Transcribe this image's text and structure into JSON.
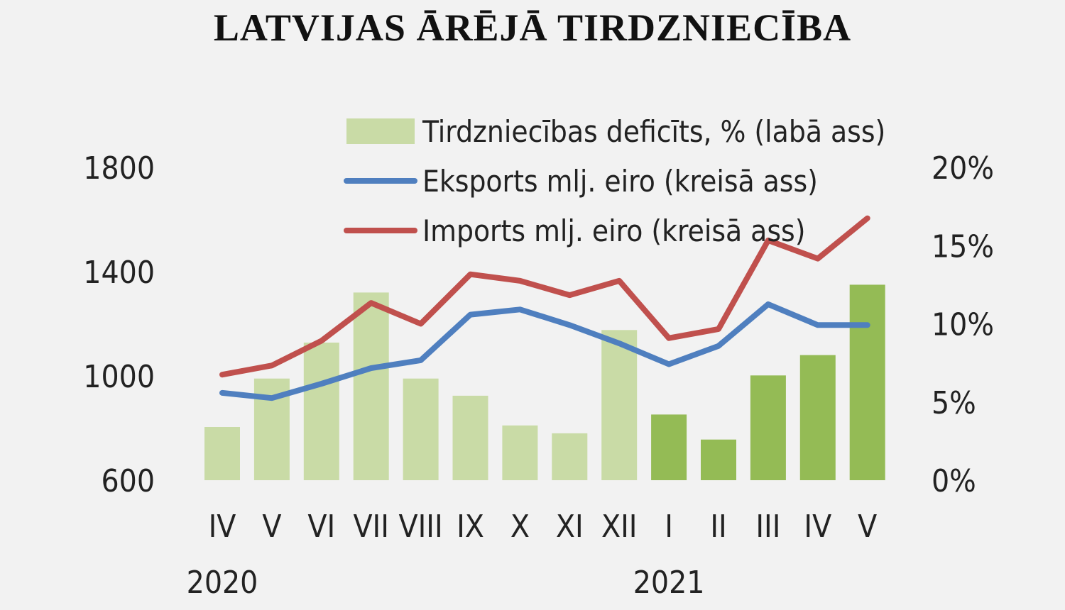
{
  "chart_data": {
    "type": "bar",
    "title": "LATVIJAS ĀRĒJĀ TIRDZNIECĪBA",
    "categories": [
      "IV",
      "V",
      "VI",
      "VII",
      "VIII",
      "IX",
      "X",
      "XI",
      "XII",
      "I",
      "II",
      "III",
      "IV",
      "V"
    ],
    "year_labels": [
      {
        "label": "2020",
        "category_index": 0
      },
      {
        "label": "2021",
        "category_index": 9
      }
    ],
    "series": [
      {
        "name": "Tirdzniecības deficīts, % (labā ass)",
        "type": "bar",
        "axis": "right",
        "values": [
          3.4,
          6.5,
          8.8,
          12.0,
          6.5,
          5.4,
          3.5,
          3.0,
          9.6,
          4.2,
          2.6,
          6.7,
          8.0,
          12.5
        ],
        "colors": [
          "#c9dba6",
          "#c9dba6",
          "#c9dba6",
          "#c9dba6",
          "#c9dba6",
          "#c9dba6",
          "#c9dba6",
          "#c9dba6",
          "#c9dba6",
          "#94bb55",
          "#94bb55",
          "#94bb55",
          "#94bb55",
          "#94bb55"
        ]
      },
      {
        "name": "Eksports mlj. eiro (kreisā ass)",
        "type": "line",
        "axis": "left",
        "color": "#4f7fbf",
        "values": [
          935,
          915,
          970,
          1030,
          1060,
          1235,
          1255,
          1195,
          1125,
          1045,
          1115,
          1275,
          1195,
          1195
        ]
      },
      {
        "name": "Imports mlj. eiro (kreisā ass)",
        "type": "line",
        "axis": "left",
        "color": "#c0504d",
        "values": [
          1005,
          1040,
          1135,
          1280,
          1200,
          1390,
          1365,
          1310,
          1365,
          1145,
          1180,
          1520,
          1450,
          1605
        ]
      }
    ],
    "y_left": {
      "ticks": [
        "1800",
        "1400",
        "1000",
        "600"
      ],
      "min": 600,
      "max": 1800
    },
    "y_right": {
      "ticks": [
        "20%",
        "15%",
        "10%",
        "5%",
        "0%"
      ],
      "min": 0,
      "max": 20
    },
    "legend_position": "top-center",
    "grid": false
  }
}
